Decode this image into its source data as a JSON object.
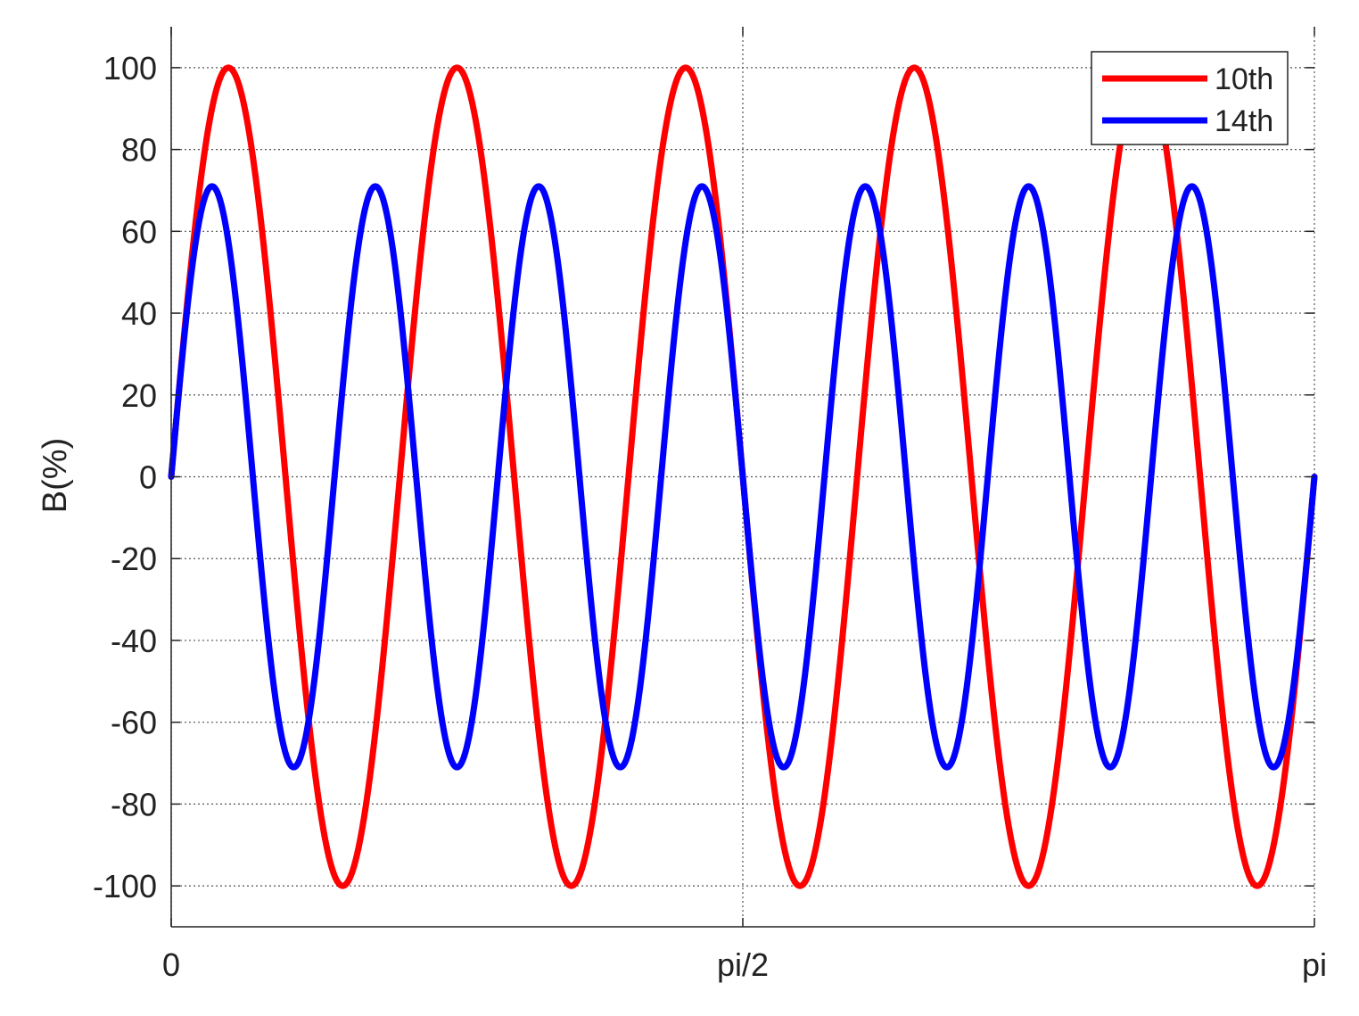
{
  "chart_data": {
    "type": "line",
    "title": "",
    "xlabel": "",
    "ylabel": "B(%)",
    "xlim": [
      0,
      3.14159265
    ],
    "ylim": [
      -110,
      110
    ],
    "x_ticks": [
      {
        "value": 0,
        "label": "0"
      },
      {
        "value": 1.5707963,
        "label": "pi/2"
      },
      {
        "value": 3.14159265,
        "label": "pi"
      }
    ],
    "y_ticks": [
      {
        "value": 100,
        "label": "100"
      },
      {
        "value": 80,
        "label": "80"
      },
      {
        "value": 60,
        "label": "60"
      },
      {
        "value": 40,
        "label": "40"
      },
      {
        "value": 20,
        "label": "20"
      },
      {
        "value": 0,
        "label": "0"
      },
      {
        "value": -20,
        "label": "-20"
      },
      {
        "value": -40,
        "label": "-40"
      },
      {
        "value": -60,
        "label": "-60"
      },
      {
        "value": -80,
        "label": "-80"
      },
      {
        "value": -100,
        "label": "-100"
      }
    ],
    "grid": true,
    "legend_position": "top-right",
    "series": [
      {
        "name": "10th",
        "color": "#ff0000",
        "amplitude": 100,
        "harmonic_order": 10
      },
      {
        "name": "14th",
        "color": "#0000ff",
        "amplitude": 71,
        "harmonic_order": 14
      }
    ]
  }
}
